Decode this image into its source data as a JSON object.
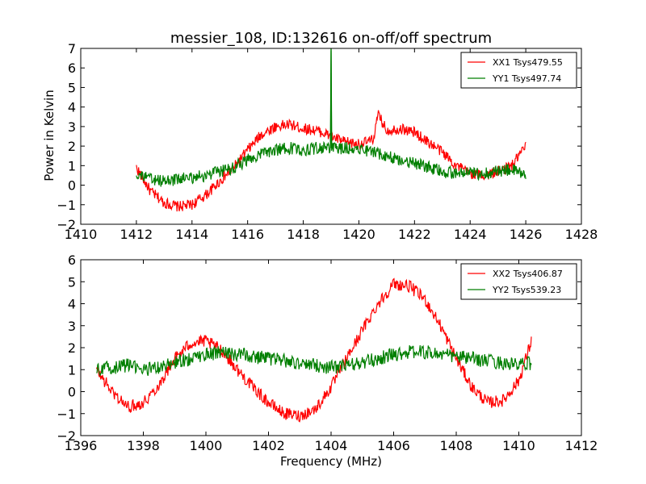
{
  "figure": {
    "title": "messier_108, ID:132616 on-off/off spectrum",
    "xlabel": "Frequency (MHz)",
    "ylabel": "Power in Kelvin"
  },
  "colors": {
    "xx": "#ff0000",
    "yy": "#007f00",
    "axes": "#000000",
    "background": "#ffffff"
  },
  "chart_data": [
    {
      "type": "line",
      "title": "messier_108, ID:132616 on-off/off spectrum",
      "xlabel": "",
      "ylabel": "Power in Kelvin",
      "xlim": [
        1410,
        1428
      ],
      "ylim": [
        -2,
        7
      ],
      "xticks": [
        "1410",
        "1412",
        "1414",
        "1416",
        "1418",
        "1420",
        "1422",
        "1424",
        "1426",
        "1428"
      ],
      "yticks": [
        "−2",
        "−1",
        "0",
        "1",
        "2",
        "3",
        "4",
        "5",
        "6",
        "7"
      ],
      "legend_position": "top-right",
      "grid": false,
      "series": [
        {
          "name": "XX1 Tsys479.55",
          "color": "#ff0000",
          "x": [
            1412.0,
            1412.5,
            1413.0,
            1413.5,
            1414.0,
            1414.5,
            1415.0,
            1415.5,
            1416.0,
            1416.5,
            1417.0,
            1417.5,
            1418.0,
            1418.5,
            1419.0,
            1419.5,
            1420.0,
            1420.5,
            1420.7,
            1421.0,
            1421.5,
            1422.0,
            1422.5,
            1423.0,
            1423.5,
            1424.0,
            1424.5,
            1425.0,
            1425.5,
            1426.0
          ],
          "y": [
            0.9,
            -0.3,
            -0.9,
            -1.1,
            -1.0,
            -0.5,
            0.2,
            0.9,
            1.8,
            2.6,
            3.0,
            3.1,
            2.9,
            2.8,
            2.5,
            2.2,
            2.1,
            2.3,
            3.6,
            2.8,
            2.9,
            2.7,
            2.2,
            1.7,
            1.0,
            0.6,
            0.5,
            0.7,
            1.0,
            2.0
          ]
        },
        {
          "name": "YY1 Tsys497.74",
          "color": "#007f00",
          "x": [
            1412.0,
            1412.5,
            1413.0,
            1413.5,
            1414.0,
            1414.5,
            1415.0,
            1415.5,
            1416.0,
            1416.5,
            1417.0,
            1417.5,
            1418.0,
            1418.5,
            1418.98,
            1419.0,
            1419.02,
            1419.5,
            1420.0,
            1420.5,
            1421.0,
            1421.5,
            1422.0,
            1422.5,
            1423.0,
            1423.5,
            1424.0,
            1424.5,
            1425.0,
            1425.5,
            1426.0
          ],
          "y": [
            0.6,
            0.3,
            0.2,
            0.3,
            0.4,
            0.5,
            0.7,
            0.9,
            1.3,
            1.6,
            1.8,
            1.9,
            1.8,
            1.9,
            1.9,
            7.0,
            1.9,
            1.9,
            1.9,
            1.7,
            1.5,
            1.3,
            1.1,
            0.9,
            0.7,
            0.6,
            0.6,
            0.6,
            0.7,
            0.8,
            0.5
          ]
        }
      ]
    },
    {
      "type": "line",
      "title": "",
      "xlabel": "Frequency (MHz)",
      "ylabel": "",
      "xlim": [
        1396,
        1412
      ],
      "ylim": [
        -2,
        6
      ],
      "xticks": [
        "1396",
        "1398",
        "1400",
        "1402",
        "1404",
        "1406",
        "1408",
        "1410",
        "1412"
      ],
      "yticks": [
        "−2",
        "−1",
        "0",
        "1",
        "2",
        "3",
        "4",
        "5",
        "6"
      ],
      "legend_position": "top-right",
      "grid": false,
      "series": [
        {
          "name": "XX2 Tsys406.87",
          "color": "#ff0000",
          "x": [
            1396.5,
            1397.0,
            1397.5,
            1398.0,
            1398.5,
            1399.0,
            1399.5,
            1400.0,
            1400.5,
            1401.0,
            1401.5,
            1402.0,
            1402.5,
            1403.0,
            1403.5,
            1404.0,
            1404.5,
            1405.0,
            1405.5,
            1406.0,
            1406.5,
            1407.0,
            1407.5,
            1408.0,
            1408.5,
            1409.0,
            1409.5,
            1410.0,
            1410.4
          ],
          "y": [
            1.0,
            0.0,
            -0.7,
            -0.5,
            0.3,
            1.5,
            2.2,
            2.3,
            1.9,
            1.0,
            0.2,
            -0.5,
            -1.0,
            -1.1,
            -0.8,
            0.2,
            1.5,
            2.8,
            4.0,
            4.9,
            4.8,
            4.2,
            3.0,
            1.5,
            0.2,
            -0.5,
            -0.4,
            0.5,
            2.3
          ]
        },
        {
          "name": "YY2 Tsys539.23",
          "color": "#007f00",
          "x": [
            1396.5,
            1397.0,
            1397.5,
            1398.0,
            1398.5,
            1399.0,
            1399.5,
            1400.0,
            1400.5,
            1401.0,
            1401.5,
            1402.0,
            1402.5,
            1403.0,
            1403.5,
            1404.0,
            1404.5,
            1405.0,
            1405.5,
            1406.0,
            1406.5,
            1407.0,
            1407.5,
            1408.0,
            1408.5,
            1409.0,
            1409.5,
            1410.0,
            1410.4
          ],
          "y": [
            1.0,
            1.1,
            1.2,
            1.0,
            1.1,
            1.3,
            1.5,
            1.7,
            1.8,
            1.7,
            1.6,
            1.5,
            1.4,
            1.3,
            1.2,
            1.1,
            1.2,
            1.3,
            1.5,
            1.7,
            1.8,
            1.8,
            1.7,
            1.6,
            1.5,
            1.4,
            1.3,
            1.2,
            1.3
          ]
        }
      ]
    }
  ]
}
